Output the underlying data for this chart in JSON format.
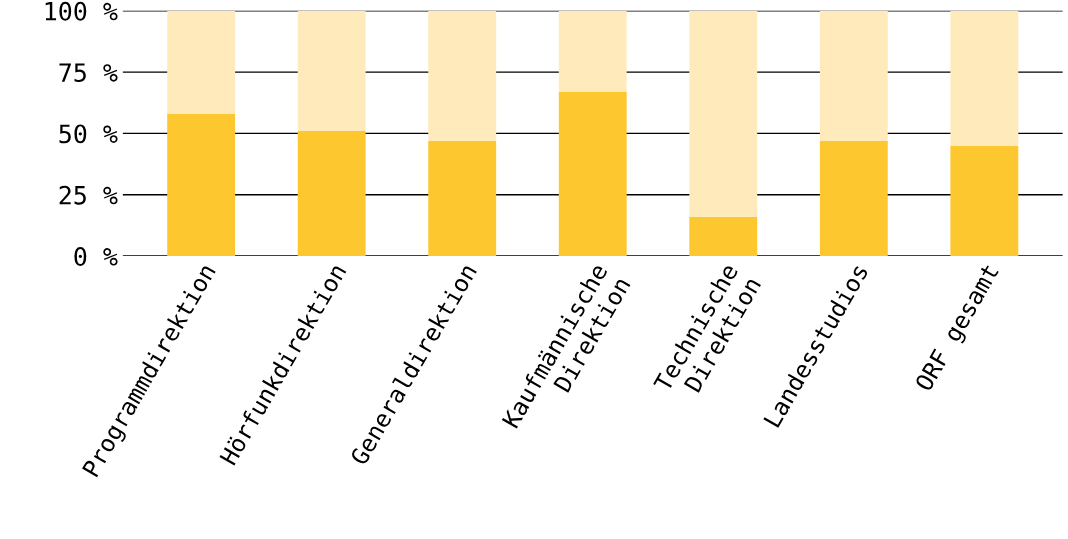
{
  "chart_data": {
    "type": "bar",
    "stacked": true,
    "categories": [
      "Programmdirektion",
      "Hörfunkdirektion",
      "Generaldirektion",
      "Kaufmännische\nDirektion",
      "Technische\nDirektion",
      "Landesstudios",
      "ORF gesamt"
    ],
    "series": [
      {
        "color": "#fcc72f",
        "values": [
          58,
          51,
          47,
          67,
          16,
          47,
          45
        ]
      },
      {
        "color": "#ffeabb",
        "values": [
          42,
          49,
          53,
          33,
          84,
          53,
          55
        ]
      }
    ],
    "ylim": [
      0,
      100
    ],
    "yticks": [
      {
        "value": 0,
        "label": "0 %"
      },
      {
        "value": 25,
        "label": "25 %"
      },
      {
        "value": 50,
        "label": "50 %"
      },
      {
        "value": 75,
        "label": "75 %"
      },
      {
        "value": 100,
        "label": "100 %"
      }
    ],
    "grid": "y",
    "legend": false
  }
}
